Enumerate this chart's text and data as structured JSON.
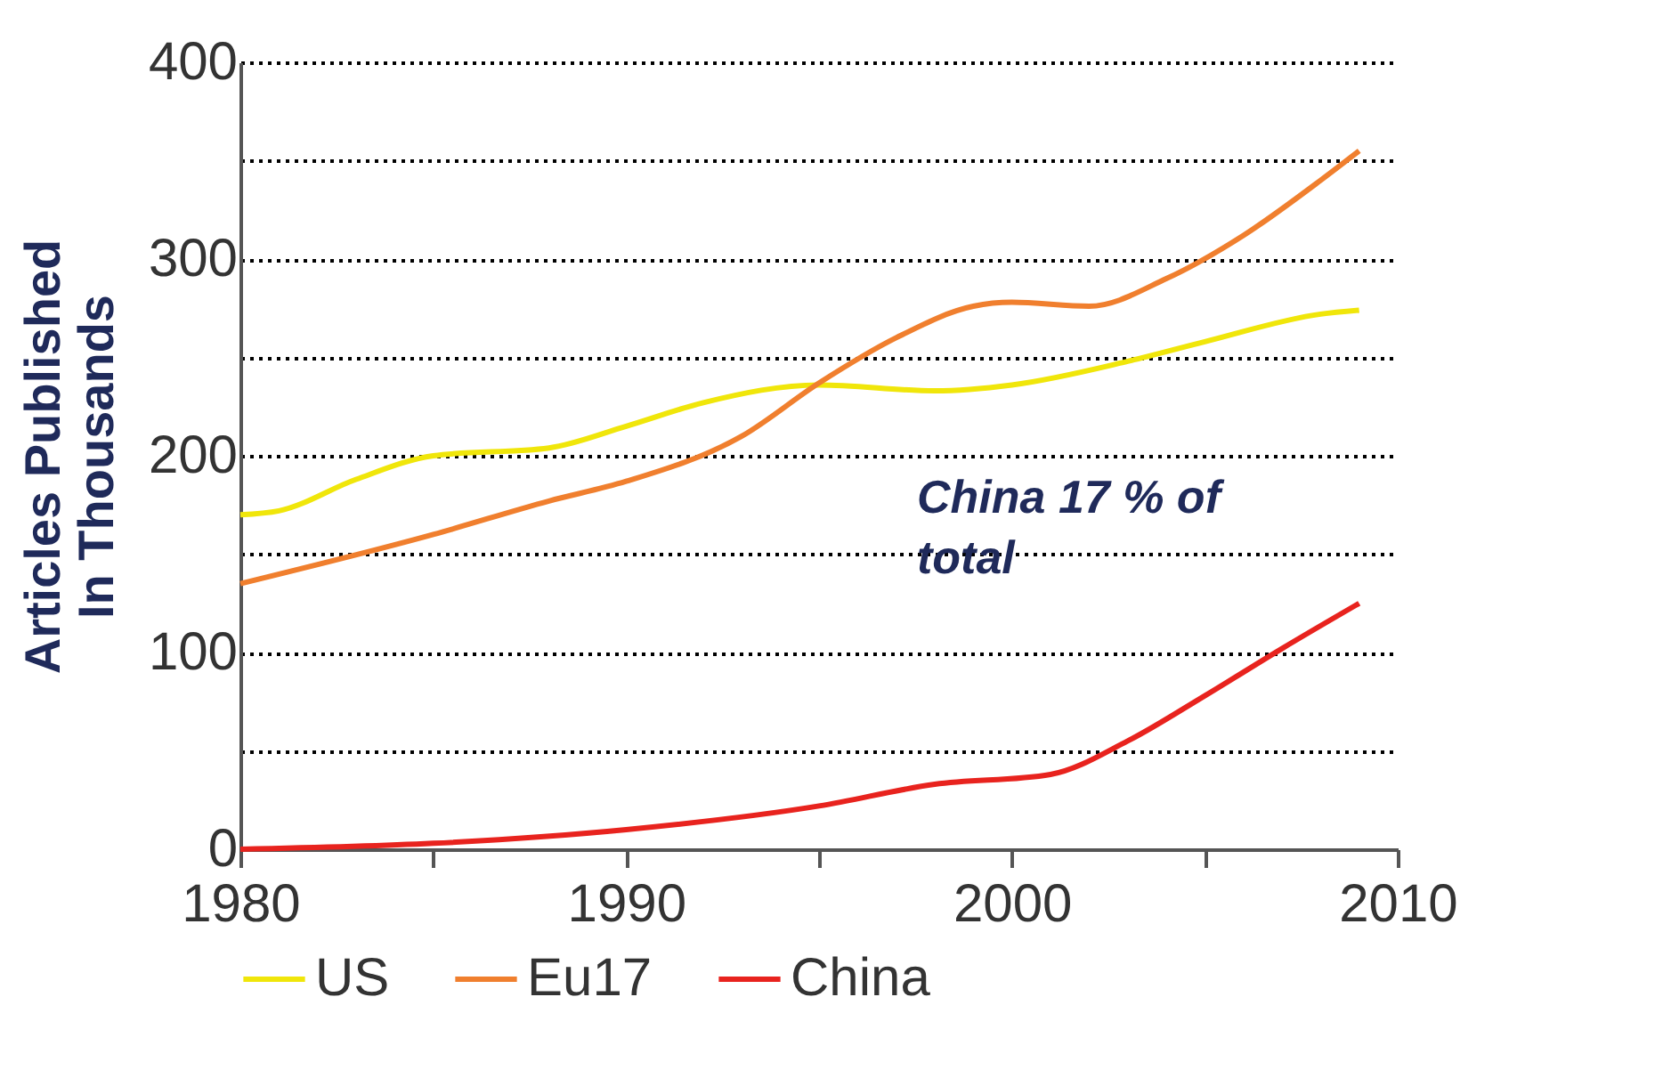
{
  "chart_data": {
    "type": "line",
    "ylabel": "Articles Published\nIn Thousands",
    "xlim": [
      1980,
      2010
    ],
    "xticks": [
      1980,
      {
        "value": 1985,
        "label": null
      },
      1990,
      {
        "value": 1995,
        "label": null
      },
      2000,
      {
        "value": 2005,
        "label": null
      },
      2010
    ],
    "ylim": [
      0,
      400
    ],
    "yticks": [
      0,
      {
        "value": 50,
        "label": null
      },
      100,
      {
        "value": 150,
        "label": null
      },
      200,
      {
        "value": 250,
        "label": null
      },
      300,
      {
        "value": 350,
        "label": null
      },
      400
    ],
    "grid": "y",
    "legend": "bottom",
    "line_style": "solid",
    "marker": "none",
    "annotations": [
      "China 17 % of\ntotal"
    ],
    "series": [
      {
        "name": "US",
        "color": "#f0e60a",
        "x": [
          1980,
          1981,
          1983,
          1985,
          1988,
          1990,
          1992,
          1995,
          1998,
          2000,
          2003,
          2005,
          2008,
          2009
        ],
        "values": [
          170,
          172,
          188,
          200,
          204,
          215,
          227,
          236,
          233,
          236,
          248,
          258,
          272,
          274
        ]
      },
      {
        "name": "Eu17",
        "color": "#f07f2e",
        "x": [
          1980,
          1985,
          1988,
          1990,
          1993,
          1995,
          1997,
          1999,
          2000,
          2002,
          2004,
          2006,
          2008,
          2009
        ],
        "values": [
          135,
          160,
          177,
          187,
          210,
          237,
          260,
          276,
          278,
          276,
          290,
          312,
          340,
          355
        ]
      },
      {
        "name": "China",
        "color": "#e8231e",
        "x": [
          1980,
          1985,
          1990,
          1995,
          1998,
          2001,
          2003,
          2005,
          2007,
          2009
        ],
        "values": [
          0,
          3,
          10,
          22,
          33,
          38,
          55,
          78,
          102,
          125
        ]
      }
    ]
  }
}
